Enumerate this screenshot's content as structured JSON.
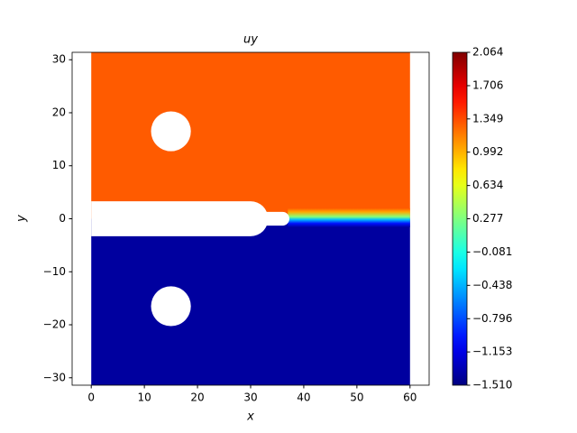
{
  "chart_data": {
    "type": "field",
    "title": "uy",
    "xlabel": "x",
    "ylabel": "y",
    "xlim": [
      -3.6,
      63.6
    ],
    "ylim": [
      -31.4,
      31.4
    ],
    "xticks": [
      0,
      10,
      20,
      30,
      40,
      50,
      60
    ],
    "yticks": [
      {
        "value": -30,
        "label": "−30"
      },
      {
        "value": -20,
        "label": "−20"
      },
      {
        "value": -10,
        "label": "−10"
      },
      0,
      10,
      20,
      30
    ],
    "regions": [
      {
        "value": 1.3
      },
      {
        "value": -1.4
      }
    ],
    "colormap": "jet",
    "clim": [
      -1.51,
      2.064
    ],
    "cticks": [
      {
        "value": -1.51,
        "label": "−1.510"
      },
      {
        "value": -1.153,
        "label": "−1.153"
      },
      {
        "value": -0.796,
        "label": "−0.796"
      },
      {
        "value": -0.438,
        "label": "−0.438"
      },
      {
        "value": -0.081,
        "label": "−0.081"
      },
      0.277,
      0.634,
      0.992,
      1.349,
      1.706,
      2.064
    ]
  }
}
